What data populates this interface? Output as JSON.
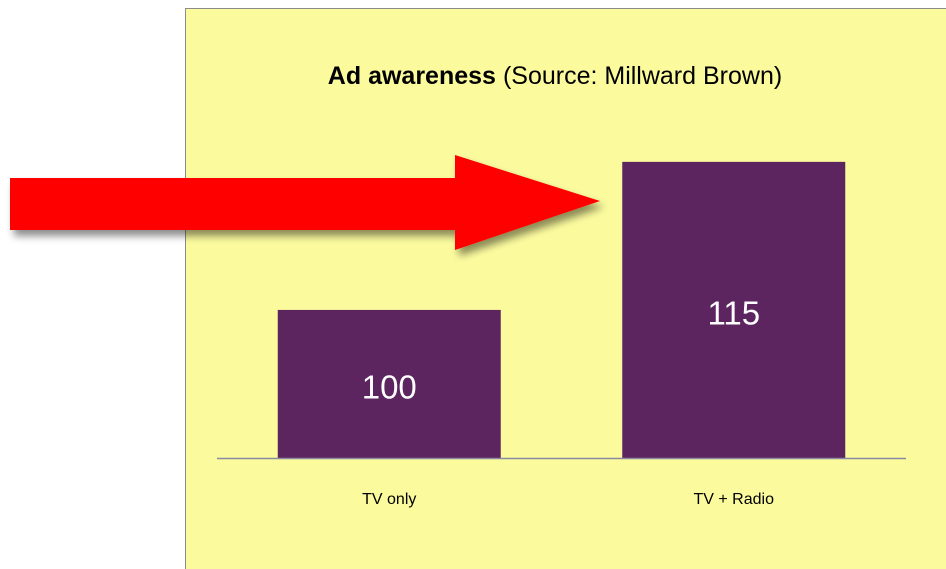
{
  "chart_data": {
    "type": "bar",
    "title": "Ad awareness",
    "subtitle": "(Source: Millward Brown)",
    "categories": [
      "TV only",
      "TV + Radio"
    ],
    "values": [
      100,
      115
    ],
    "color": "#5c2560",
    "ylim": [
      85,
      120
    ]
  }
}
